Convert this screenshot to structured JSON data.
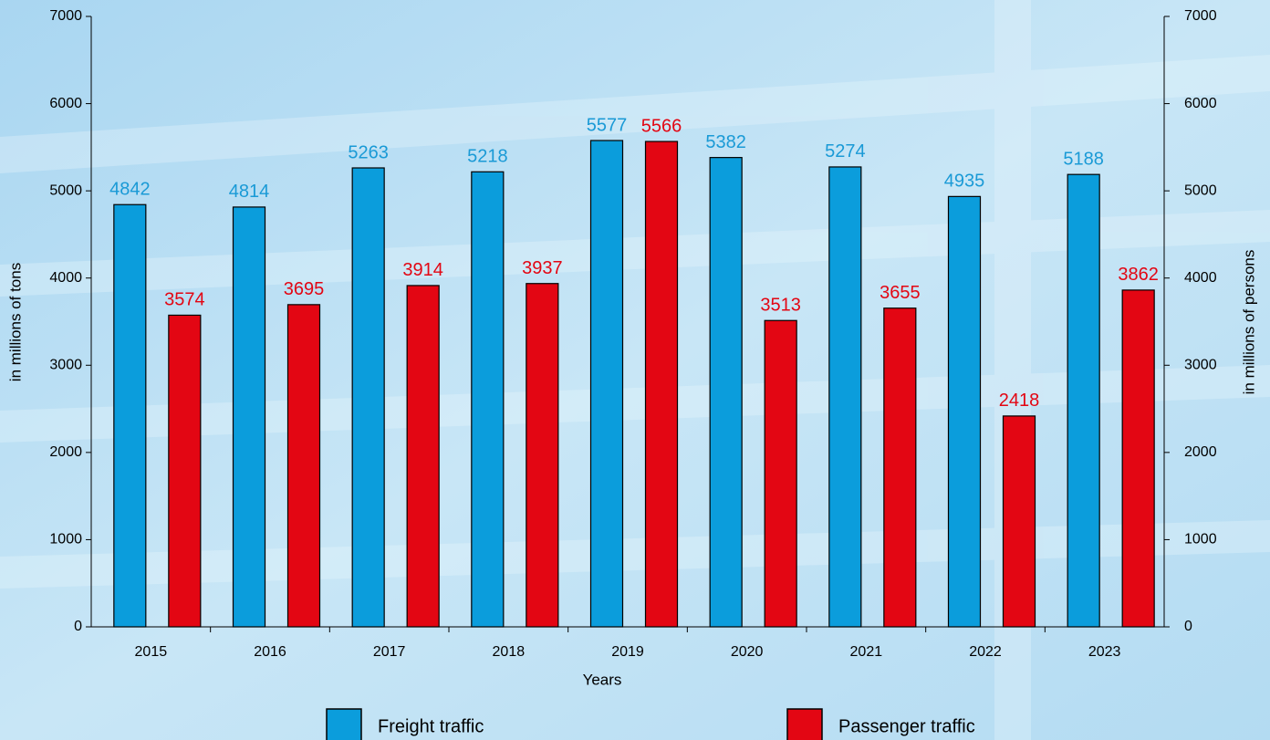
{
  "chart_data": {
    "type": "bar",
    "categories": [
      "2015",
      "2016",
      "2017",
      "2018",
      "2019",
      "2020",
      "2021",
      "2022",
      "2023"
    ],
    "series": [
      {
        "name": "Freight traffic",
        "color": "#0b9ddc",
        "label_color": "#1a9ad6",
        "values": [
          4842,
          4814,
          5263,
          5218,
          5577,
          5382,
          5274,
          4935,
          5188
        ]
      },
      {
        "name": "Passenger traffic",
        "color": "#e30613",
        "label_color": "#e30613",
        "axis": "y2",
        "values": [
          3574,
          3695,
          3914,
          3937,
          5566,
          3513,
          3655,
          2418,
          3862
        ]
      }
    ],
    "xlabel": "Years",
    "ylabel": "in millions of tons",
    "y2label": "in millions of persons",
    "ylim": [
      0,
      7000
    ],
    "yticks": [
      0,
      1000,
      2000,
      3000,
      4000,
      5000,
      6000,
      7000
    ],
    "y2lim": [
      0,
      7000
    ],
    "y2ticks": [
      0,
      1000,
      2000,
      3000,
      4000,
      5000,
      6000,
      7000
    ],
    "legend": "bottom"
  }
}
